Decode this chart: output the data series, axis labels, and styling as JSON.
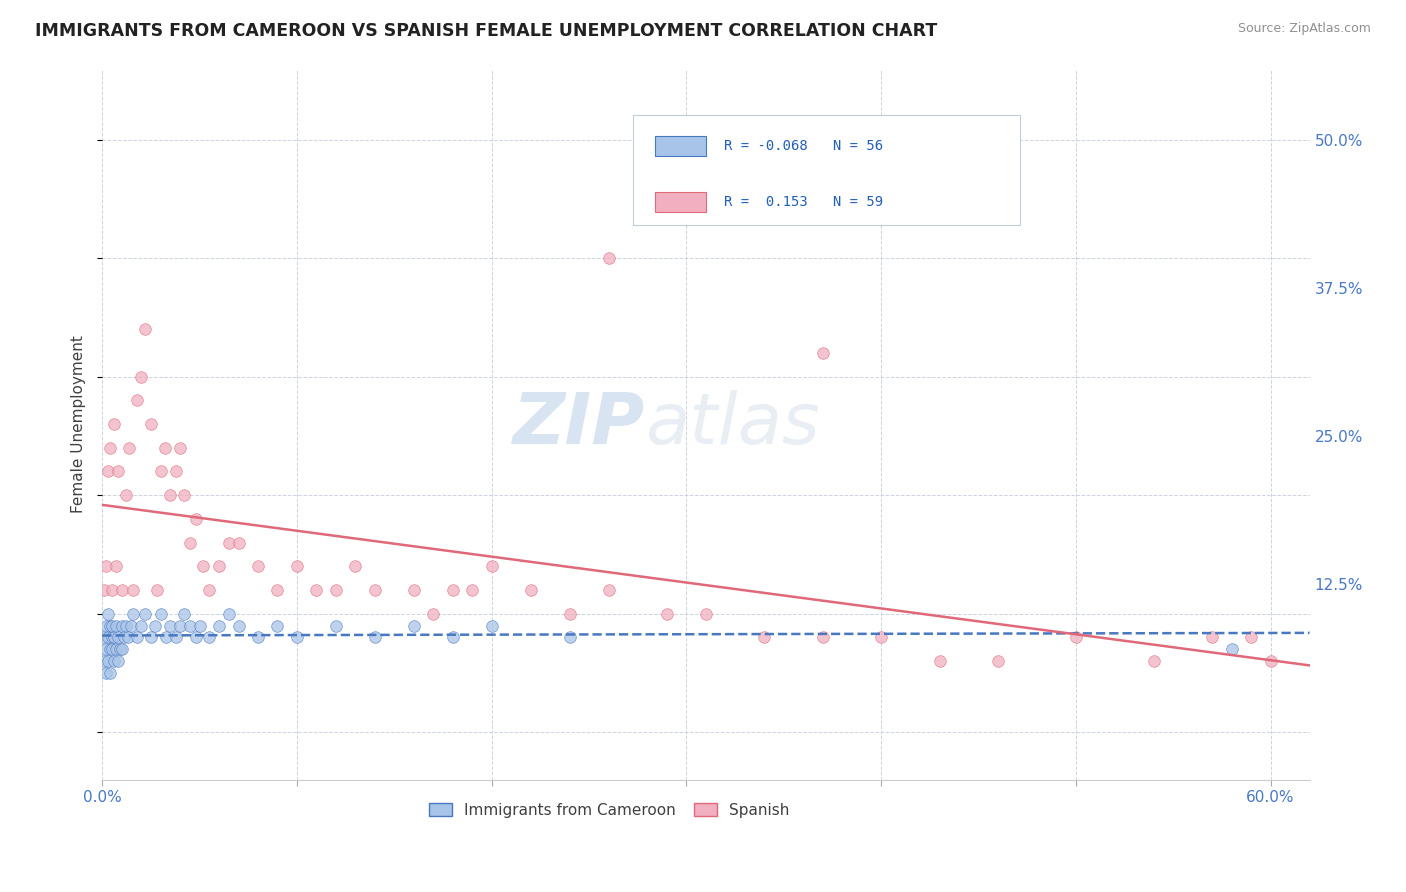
{
  "title": "IMMIGRANTS FROM CAMEROON VS SPANISH FEMALE UNEMPLOYMENT CORRELATION CHART",
  "source": "Source: ZipAtlas.com",
  "ylabel": "Female Unemployment",
  "legend_labels": [
    "Immigrants from Cameroon",
    "Spanish"
  ],
  "legend_r": [
    -0.068,
    0.153
  ],
  "legend_n": [
    56,
    59
  ],
  "xlim": [
    0.0,
    0.62
  ],
  "ylim": [
    -0.04,
    0.56
  ],
  "yticks": [
    0.0,
    0.125,
    0.25,
    0.375,
    0.5
  ],
  "ytick_labels": [
    "",
    "12.5%",
    "25.0%",
    "37.5%",
    "50.0%"
  ],
  "xtick_left_label": "0.0%",
  "xtick_right_label": "60.0%",
  "color_blue": "#a8c4e8",
  "color_pink": "#f0b0c0",
  "line_blue": "#4878c0",
  "line_pink": "#e06878",
  "watermark_zip": "ZIP",
  "watermark_atlas": "atlas",
  "blue_points_x": [
    0.001,
    0.001,
    0.002,
    0.002,
    0.002,
    0.003,
    0.003,
    0.003,
    0.004,
    0.004,
    0.004,
    0.005,
    0.005,
    0.005,
    0.006,
    0.006,
    0.007,
    0.007,
    0.008,
    0.008,
    0.009,
    0.01,
    0.01,
    0.011,
    0.012,
    0.013,
    0.015,
    0.016,
    0.018,
    0.02,
    0.022,
    0.025,
    0.027,
    0.03,
    0.033,
    0.035,
    0.038,
    0.04,
    0.042,
    0.045,
    0.048,
    0.05,
    0.055,
    0.06,
    0.065,
    0.07,
    0.08,
    0.09,
    0.1,
    0.12,
    0.14,
    0.16,
    0.18,
    0.2,
    0.24,
    0.58
  ],
  "blue_points_y": [
    0.08,
    0.06,
    0.09,
    0.07,
    0.05,
    0.08,
    0.06,
    0.1,
    0.07,
    0.09,
    0.05,
    0.08,
    0.07,
    0.09,
    0.06,
    0.08,
    0.07,
    0.09,
    0.08,
    0.06,
    0.07,
    0.09,
    0.07,
    0.08,
    0.09,
    0.08,
    0.09,
    0.1,
    0.08,
    0.09,
    0.1,
    0.08,
    0.09,
    0.1,
    0.08,
    0.09,
    0.08,
    0.09,
    0.1,
    0.09,
    0.08,
    0.09,
    0.08,
    0.09,
    0.1,
    0.09,
    0.08,
    0.09,
    0.08,
    0.09,
    0.08,
    0.09,
    0.08,
    0.09,
    0.08,
    0.07
  ],
  "pink_points_x": [
    0.001,
    0.002,
    0.003,
    0.004,
    0.005,
    0.006,
    0.007,
    0.008,
    0.01,
    0.012,
    0.014,
    0.016,
    0.018,
    0.02,
    0.022,
    0.025,
    0.028,
    0.03,
    0.032,
    0.035,
    0.038,
    0.04,
    0.042,
    0.045,
    0.048,
    0.052,
    0.055,
    0.06,
    0.065,
    0.07,
    0.08,
    0.09,
    0.1,
    0.11,
    0.12,
    0.13,
    0.14,
    0.16,
    0.17,
    0.18,
    0.19,
    0.2,
    0.22,
    0.24,
    0.26,
    0.29,
    0.31,
    0.34,
    0.37,
    0.4,
    0.43,
    0.46,
    0.5,
    0.54,
    0.57,
    0.59,
    0.6,
    0.26,
    0.37
  ],
  "pink_points_y": [
    0.12,
    0.14,
    0.22,
    0.24,
    0.12,
    0.26,
    0.14,
    0.22,
    0.12,
    0.2,
    0.24,
    0.12,
    0.28,
    0.3,
    0.34,
    0.26,
    0.12,
    0.22,
    0.24,
    0.2,
    0.22,
    0.24,
    0.2,
    0.16,
    0.18,
    0.14,
    0.12,
    0.14,
    0.16,
    0.16,
    0.14,
    0.12,
    0.14,
    0.12,
    0.12,
    0.14,
    0.12,
    0.12,
    0.1,
    0.12,
    0.12,
    0.14,
    0.12,
    0.1,
    0.12,
    0.1,
    0.1,
    0.08,
    0.08,
    0.08,
    0.06,
    0.06,
    0.08,
    0.06,
    0.08,
    0.08,
    0.06,
    0.4,
    0.32
  ]
}
